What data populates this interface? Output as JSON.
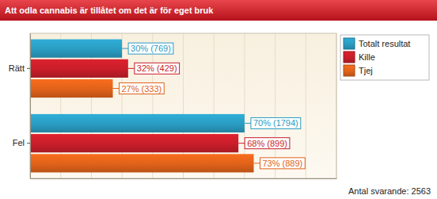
{
  "chart_data": {
    "type": "bar",
    "title": "Att odla cannabis är tillåtet om det är för eget bruk",
    "orientation": "horizontal",
    "categories": [
      "Rätt",
      "Fel"
    ],
    "series": [
      {
        "name": "Totalt resultat",
        "color": "#2a9cc2",
        "values": [
          30,
          70
        ],
        "value_labels": [
          "30% (769)",
          "70% (1794)"
        ]
      },
      {
        "name": "Kille",
        "color": "#c81e2a",
        "values": [
          32,
          68
        ],
        "value_labels": [
          "32% (429)",
          "68% (899)"
        ]
      },
      {
        "name": "Tjej",
        "color": "#e0621a",
        "values": [
          27,
          73
        ],
        "value_labels": [
          "27% (333)",
          "73% (889)"
        ]
      }
    ],
    "xlim": [
      0,
      100
    ],
    "xticks": [
      0,
      10,
      20,
      30,
      40,
      50,
      60,
      70,
      80,
      90,
      100
    ],
    "grid": true,
    "tick_labels": "y",
    "data_labels": true,
    "legend": "right",
    "annotation": "Antal svarande: 2563"
  }
}
